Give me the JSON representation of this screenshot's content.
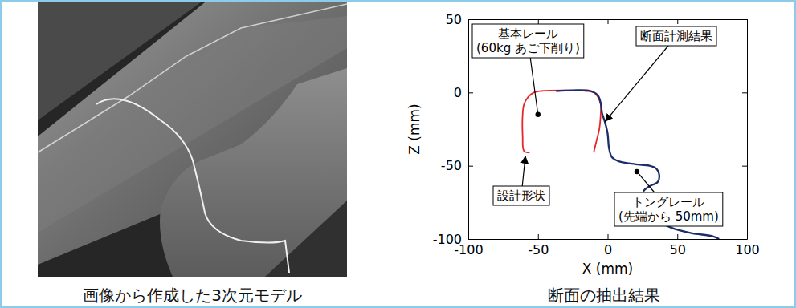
{
  "image_panel": {
    "caption": "画像から作成した3次元モデル"
  },
  "chart_data": {
    "type": "line",
    "title": "断面の抽出結果",
    "x_label": "X (mm)",
    "y_label": "Z (mm)",
    "xlim": [
      -100,
      100
    ],
    "xticks": [
      -100,
      -50,
      0,
      50,
      100
    ],
    "ylim": [
      -100,
      50
    ],
    "yticks": [
      -100,
      -50,
      0,
      50
    ],
    "grid": false,
    "series": [
      {
        "color": "#e7262b",
        "x": [
          -56,
          -60,
          -61,
          -61,
          -60,
          -57,
          -53,
          -48,
          -30,
          -15,
          -10,
          -7,
          -5,
          -5,
          -6,
          -8,
          -10
        ],
        "values": [
          -41,
          -40,
          -30,
          -15,
          -8,
          -3,
          0,
          1,
          1.5,
          1,
          0,
          -3,
          -8,
          -15,
          -25,
          -33,
          -41
        ]
      },
      {
        "color": "#1d2c6b",
        "x": [
          -37,
          -25,
          -12,
          -7,
          -5,
          -4,
          -2,
          0,
          1,
          3,
          8,
          20,
          30,
          35,
          37,
          36,
          30,
          26,
          25,
          27,
          33,
          45,
          60,
          75,
          80
        ],
        "values": [
          1,
          1.5,
          1,
          -2,
          -7,
          -14,
          -20,
          -28,
          -38,
          -44,
          -47,
          -49,
          -50,
          -52,
          -56,
          -61,
          -64,
          -67,
          -72,
          -80,
          -86,
          -92,
          -96,
          -98,
          -100
        ]
      }
    ],
    "annotations": [
      {
        "lines": [
          "基本レール",
          "(60kg あご下削り)"
        ],
        "x": -50,
        "y": -15,
        "marker": "dot"
      },
      {
        "lines": [
          "断面計測結果"
        ],
        "x": -2,
        "y": -20,
        "marker": "arrow"
      },
      {
        "lines": [
          "設計形状"
        ],
        "x": -59,
        "y": -43,
        "marker": "arrow"
      },
      {
        "lines": [
          "トングレール",
          "(先端から 50mm)"
        ],
        "x": 21,
        "y": -54,
        "marker": "dot"
      }
    ]
  }
}
